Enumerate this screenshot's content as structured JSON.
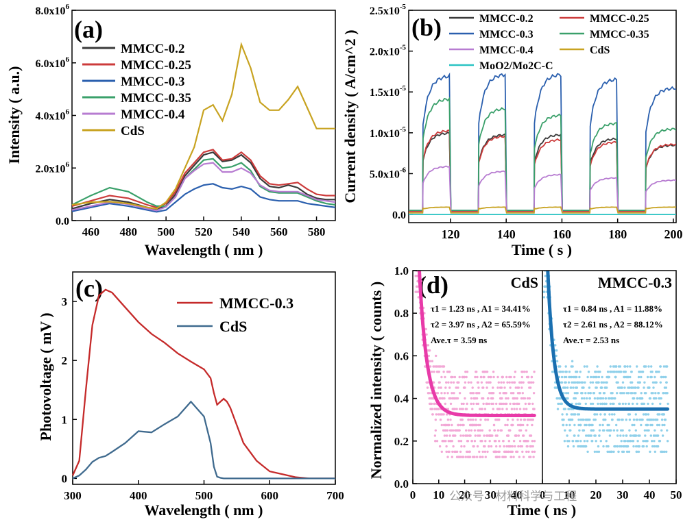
{
  "chart_data": [
    {
      "panel": "(a)",
      "type": "line",
      "xlabel": "Wavelength ( nm )",
      "ylabel": "Intensity ( a.u.)",
      "xlim": [
        450,
        590
      ],
      "ylim": [
        0,
        8000000
      ],
      "xticks": [
        "460",
        "480",
        "500",
        "520",
        "540",
        "560",
        "580"
      ],
      "xtick_values": [
        460,
        480,
        500,
        520,
        540,
        560,
        580
      ],
      "yticks": [
        "0.0",
        "2.0x10^6",
        "4.0x10^6",
        "6.0x10^6",
        "8.0x10^6"
      ],
      "ytick_values": [
        0,
        2000000,
        4000000,
        6000000,
        8000000
      ],
      "legend_position": "upper-left",
      "x": [
        450,
        460,
        470,
        480,
        490,
        495,
        500,
        505,
        510,
        515,
        520,
        525,
        530,
        535,
        540,
        545,
        550,
        555,
        560,
        565,
        570,
        575,
        580,
        585,
        590
      ],
      "series": [
        {
          "name": "MMCC-0.2",
          "color": "#3a3a3a",
          "values": [
            450000,
            650000,
            800000,
            700000,
            500000,
            430000,
            560000,
            1000000,
            1700000,
            2100000,
            2500000,
            2600000,
            2250000,
            2300000,
            2500000,
            2200000,
            1600000,
            1300000,
            1250000,
            1350000,
            1250000,
            1000000,
            850000,
            800000,
            800000
          ]
        },
        {
          "name": "MMCC-0.25",
          "color": "#cc3b3b",
          "values": [
            550000,
            750000,
            950000,
            850000,
            600000,
            500000,
            650000,
            1100000,
            1800000,
            2200000,
            2600000,
            2700000,
            2300000,
            2350000,
            2600000,
            2300000,
            1700000,
            1400000,
            1350000,
            1400000,
            1450000,
            1200000,
            1000000,
            950000,
            950000
          ]
        },
        {
          "name": "MMCC-0.3",
          "color": "#2a5fae",
          "values": [
            350000,
            500000,
            650000,
            550000,
            400000,
            330000,
            400000,
            700000,
            1000000,
            1200000,
            1350000,
            1400000,
            1250000,
            1200000,
            1300000,
            1200000,
            900000,
            800000,
            750000,
            750000,
            750000,
            650000,
            600000,
            550000,
            500000
          ]
        },
        {
          "name": "MMCC-0.35",
          "color": "#3aa06a",
          "values": [
            600000,
            950000,
            1250000,
            1100000,
            700000,
            550000,
            550000,
            900000,
            1600000,
            1950000,
            2300000,
            2350000,
            2000000,
            2050000,
            2200000,
            1900000,
            1300000,
            1100000,
            1050000,
            1050000,
            1050000,
            900000,
            750000,
            650000,
            600000
          ]
        },
        {
          "name": "MMCC-0.4",
          "color": "#b77cd1",
          "values": [
            400000,
            550000,
            700000,
            620000,
            450000,
            380000,
            520000,
            900000,
            1600000,
            1900000,
            2150000,
            2200000,
            1850000,
            1850000,
            2000000,
            1800000,
            1350000,
            1150000,
            1100000,
            1100000,
            1100000,
            950000,
            800000,
            750000,
            700000
          ]
        },
        {
          "name": "CdS",
          "color": "#c8a321",
          "values": [
            600000,
            700000,
            720000,
            650000,
            500000,
            450000,
            700000,
            1200000,
            2000000,
            2800000,
            4200000,
            4400000,
            3800000,
            4800000,
            6700000,
            5800000,
            4500000,
            4200000,
            4200000,
            4600000,
            5100000,
            4300000,
            3500000,
            3500000,
            3500000
          ]
        }
      ]
    },
    {
      "panel": "(b)",
      "type": "line",
      "xlabel": "Time ( s )",
      "ylabel": "Current density ( A/cm^2 )",
      "xlim": [
        105,
        201
      ],
      "ylim": [
        -1e-06,
        2.5e-05
      ],
      "xticks": [
        "120",
        "140",
        "160",
        "180",
        "200"
      ],
      "xtick_values": [
        120,
        140,
        160,
        180,
        200
      ],
      "yticks": [
        "0.0",
        "5.0x10^-6",
        "1.0x10^-5",
        "1.5x10^-5",
        "2.0x10^-5",
        "2.5x10^-5"
      ],
      "ytick_values": [
        0,
        5e-06,
        1e-05,
        1.5e-05,
        2e-05,
        2.5e-05
      ],
      "legend_position": "top",
      "on_intervals": [
        [
          110,
          120
        ],
        [
          130,
          140
        ],
        [
          150,
          160
        ],
        [
          170,
          180
        ],
        [
          190,
          201
        ]
      ],
      "series": [
        {
          "name": "MMCC-0.2",
          "color": "#3a3a3a",
          "on_levels": [
            1e-05,
            9.8e-06,
            9.8e-06,
            9.3e-06,
            8.5e-06
          ],
          "dark": 4e-07
        },
        {
          "name": "MMCC-0.25",
          "color": "#cc3b3b",
          "on_levels": [
            1.03e-05,
            9.6e-06,
            9.2e-06,
            8.9e-06,
            8.6e-06
          ],
          "dark": 4e-07
        },
        {
          "name": "MMCC-0.3",
          "color": "#2a5fae",
          "on_levels": [
            1.7e-05,
            1.72e-05,
            1.72e-05,
            1.66e-05,
            1.55e-05
          ],
          "dark": 5e-07
        },
        {
          "name": "MMCC-0.35",
          "color": "#3aa06a",
          "on_levels": [
            1.42e-05,
            1.3e-05,
            1.22e-05,
            1.12e-05,
            1.05e-05
          ],
          "dark": 5e-07
        },
        {
          "name": "MMCC-0.4",
          "color": "#b77cd1",
          "on_levels": [
            5.9e-06,
            5.3e-06,
            4.9e-06,
            4.5e-06,
            4.2e-06
          ],
          "dark": 2e-07
        },
        {
          "name": "CdS",
          "color": "#c8a321",
          "on_levels": [
            9e-07,
            9e-07,
            9e-07,
            9e-07,
            9e-07
          ],
          "dark": 2e-07
        },
        {
          "name": "MoO2/Mo2C-C",
          "color": "#2bc3c3",
          "on_levels": [
            0,
            0,
            0,
            0,
            0
          ],
          "dark": 0
        }
      ]
    },
    {
      "panel": "(c)",
      "type": "line",
      "xlabel": "Wavelength ( nm )",
      "ylabel": "Photovoltage ( mV )",
      "xlim": [
        300,
        700
      ],
      "ylim": [
        -0.1,
        3.5
      ],
      "xticks": [
        "300",
        "400",
        "500",
        "600",
        "700"
      ],
      "xtick_values": [
        300,
        400,
        500,
        600,
        700
      ],
      "yticks": [
        "0",
        "1",
        "2",
        "3"
      ],
      "ytick_values": [
        0,
        1,
        2,
        3
      ],
      "legend_position": "top-right",
      "x": [
        300,
        310,
        320,
        330,
        340,
        350,
        360,
        380,
        400,
        420,
        440,
        460,
        480,
        500,
        510,
        515,
        520,
        525,
        530,
        535,
        540,
        550,
        560,
        580,
        600,
        620,
        640,
        660,
        700
      ],
      "series": [
        {
          "name": "MMCC-0.3",
          "color": "#c52a2a",
          "values": [
            0.05,
            0.3,
            1.5,
            2.6,
            3.1,
            3.2,
            3.15,
            2.9,
            2.65,
            2.45,
            2.3,
            2.12,
            1.98,
            1.85,
            1.7,
            1.45,
            1.25,
            1.3,
            1.35,
            1.3,
            1.2,
            0.9,
            0.6,
            0.3,
            0.12,
            0.07,
            0.02,
            0.0,
            0.0
          ]
        },
        {
          "name": "CdS",
          "color": "#3f6a8e",
          "values": [
            0.0,
            0.05,
            0.15,
            0.28,
            0.35,
            0.38,
            0.45,
            0.6,
            0.8,
            0.78,
            0.92,
            1.05,
            1.3,
            1.05,
            0.6,
            0.2,
            0.03,
            0.01,
            0.0,
            0.0,
            0.0,
            0.0,
            0.0,
            0.0,
            0.0,
            0.0,
            0.0,
            0.0,
            0.0
          ]
        }
      ]
    },
    {
      "panel": "(d)",
      "type": "scatter",
      "xlabel": "Time ( ns )",
      "ylabel": "Normalized intensity ( counts )",
      "ylim": [
        0,
        1
      ],
      "yticks": [
        "0.0",
        "0.2",
        "0.4",
        "0.6",
        "0.8",
        "1.0"
      ],
      "ytick_values": [
        0,
        0.2,
        0.4,
        0.6,
        0.8,
        1.0
      ],
      "subplots": [
        {
          "name": "CdS",
          "xlim": [
            0,
            50
          ],
          "xticks": [
            "0",
            "10",
            "20",
            "30",
            "40"
          ],
          "xtick_values": [
            0,
            10,
            20,
            30,
            40
          ],
          "scatter_color": "#f2a8d6",
          "fit_color": "#e83aa8",
          "fit": {
            "tau": 3.0,
            "baseline": 0.32,
            "start": 2.5
          },
          "notes": [
            "τ1 = 1.23 ns , A1 = 34.41%",
            "τ2 = 3.97 ns , A2 = 65.59%",
            "Ave.τ = 3.59 ns"
          ]
        },
        {
          "name": "MMCC-0.3",
          "xlim": [
            0,
            50
          ],
          "xticks": [
            "0",
            "10",
            "20",
            "30",
            "40",
            "50"
          ],
          "xtick_values": [
            0,
            10,
            20,
            30,
            40,
            50
          ],
          "scatter_color": "#8fd0ea",
          "fit_color": "#1a6fb0",
          "fit": {
            "tau": 2.3,
            "baseline": 0.35,
            "start": 2.0
          },
          "notes": [
            "τ1 = 0.84 ns , A1 = 11.88%",
            "τ2 = 2.61 ns , A2 = 88.12%",
            "Ave.τ = 2.53 ns"
          ]
        }
      ]
    }
  ],
  "watermark": "公众号 · 材料科学与工程"
}
